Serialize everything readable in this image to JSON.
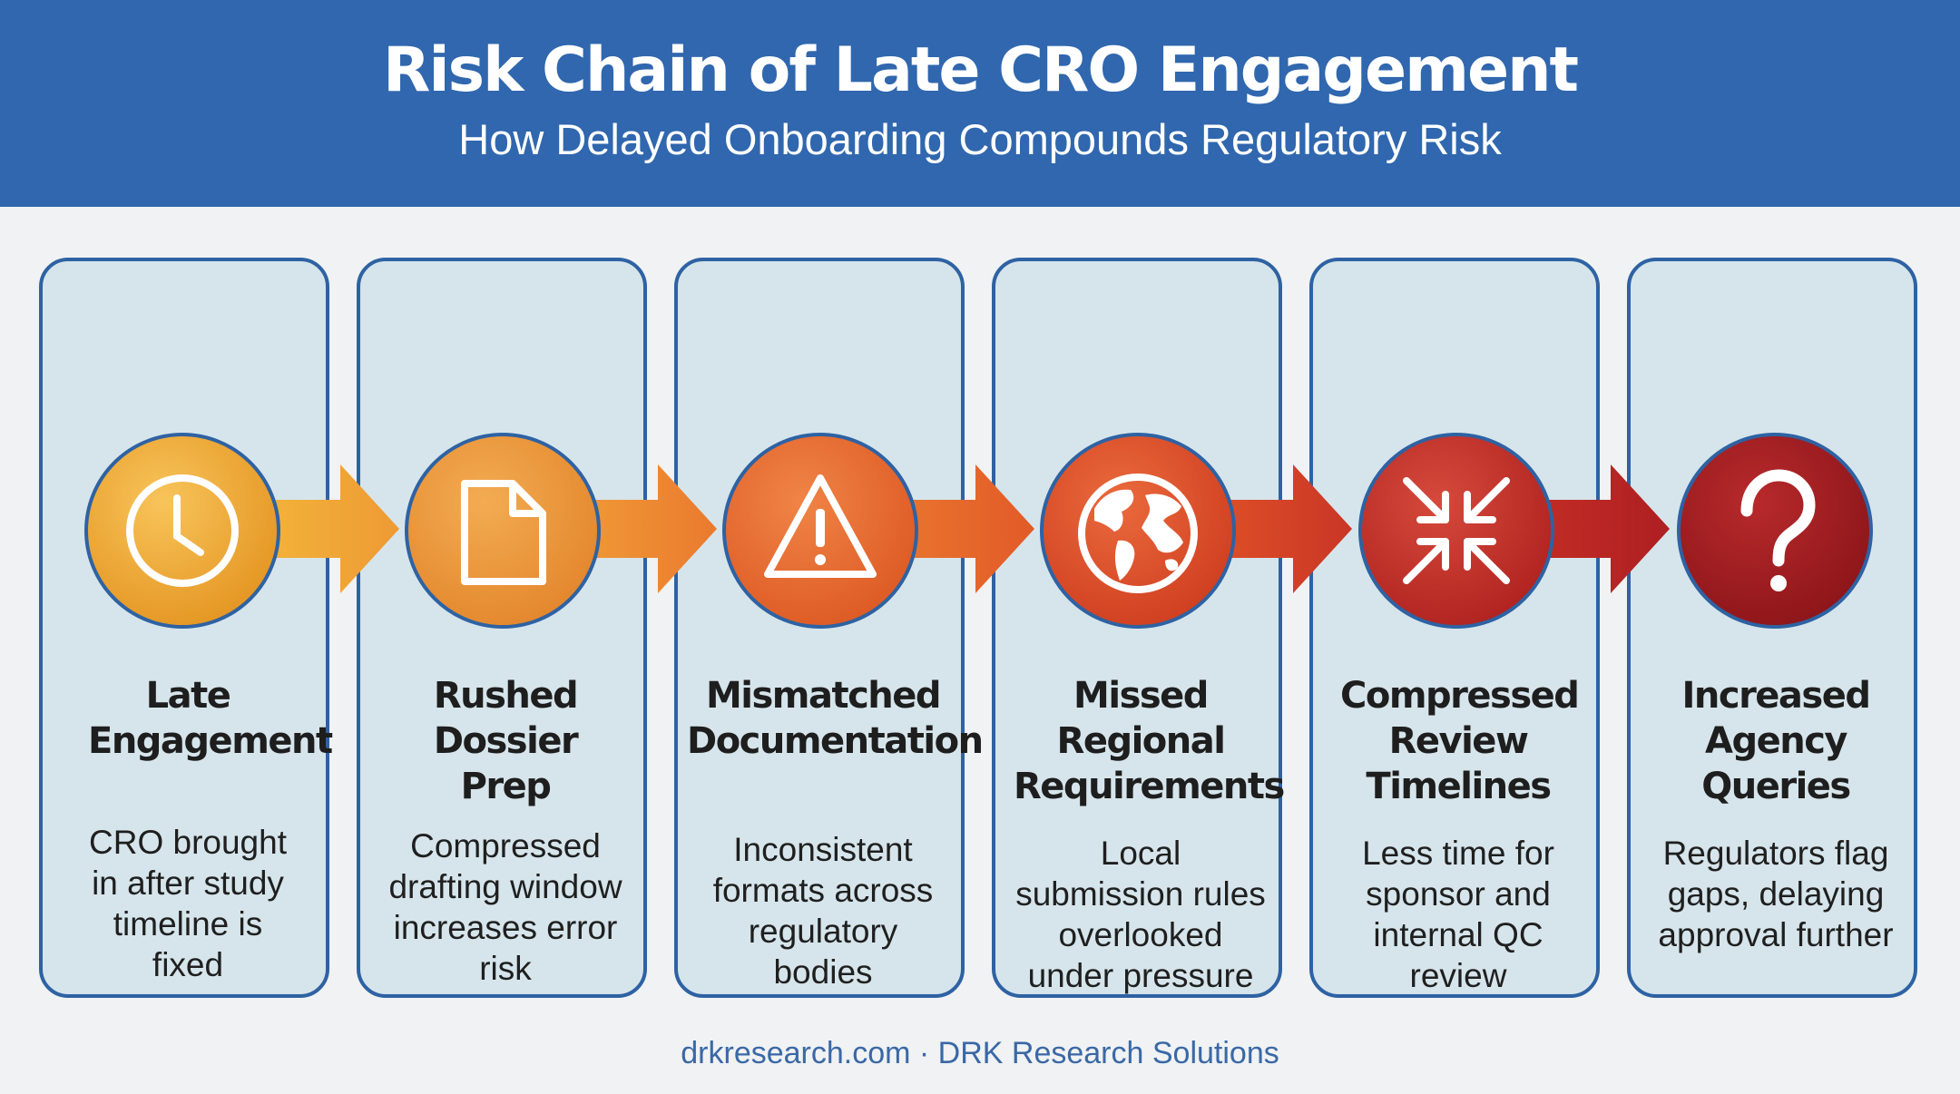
{
  "header": {
    "title": "Risk Chain of Late CRO Engagement",
    "subtitle": "How Delayed Onboarding Compounds Regulatory Risk"
  },
  "steps": [
    {
      "title": "Late Engagement",
      "description": "CRO brought in after study timeline is fixed",
      "icon": "clock-icon",
      "color": "#f0a830"
    },
    {
      "title": "Rushed Dossier Prep",
      "description": "Compressed drafting window increases error risk",
      "icon": "document-icon",
      "color": "#ec9434"
    },
    {
      "title": "Mismatched Documentation",
      "description": "Inconsistent formats across regulatory bodies",
      "icon": "warning-icon",
      "color": "#e86a2c"
    },
    {
      "title": "Missed Regional Requirements",
      "description": "Local submission rules overlooked under pressure",
      "icon": "globe-icon",
      "color": "#de4e26"
    },
    {
      "title": "Compressed Review Timelines",
      "description": "Less time for sponsor and internal QC review",
      "icon": "compress-arrows-icon",
      "color": "#c62e26"
    },
    {
      "title": "Increased Agency Queries",
      "description": "Regulators flag gaps, delaying approval further",
      "icon": "question-mark-icon",
      "color": "#a91d22"
    }
  ],
  "footer": {
    "text": "drkresearch.com · DRK Research Solutions"
  },
  "colors": {
    "header_background": "#3067ae",
    "card_background": "#d6e5eb",
    "card_border": "#2e62a3",
    "footer_text": "#3a68a6"
  }
}
